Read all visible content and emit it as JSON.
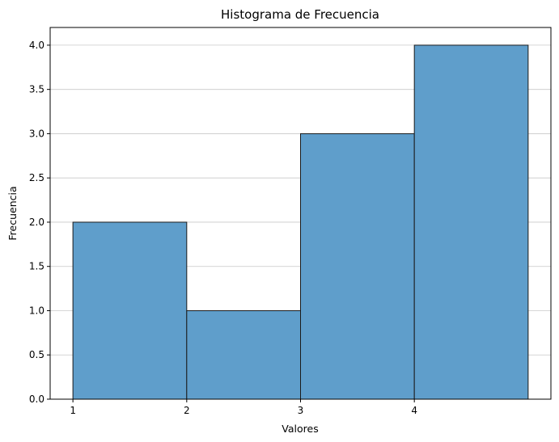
{
  "chart_data": {
    "type": "bar",
    "title": "Histograma de Frecuencia",
    "xlabel": "Valores",
    "ylabel": "Frecuencia",
    "bins": [
      {
        "start": 1,
        "end": 2,
        "value": 2
      },
      {
        "start": 2,
        "end": 3,
        "value": 1
      },
      {
        "start": 3,
        "end": 4,
        "value": 3
      },
      {
        "start": 4,
        "end": 5,
        "value": 4
      }
    ],
    "xlim": [
      0.8,
      5.2
    ],
    "ylim": [
      0,
      4.2
    ],
    "xticks": [
      {
        "value": 1,
        "label": "1"
      },
      {
        "value": 2,
        "label": "2"
      },
      {
        "value": 3,
        "label": "3"
      },
      {
        "value": 4,
        "label": "4"
      }
    ],
    "yticks": [
      {
        "value": 0,
        "label": "0.0"
      },
      {
        "value": 0.5,
        "label": "0.5"
      },
      {
        "value": 1,
        "label": "1.0"
      },
      {
        "value": 1.5,
        "label": "1.5"
      },
      {
        "value": 2,
        "label": "2.0"
      },
      {
        "value": 2.5,
        "label": "2.5"
      },
      {
        "value": 3,
        "label": "3.0"
      },
      {
        "value": 3.5,
        "label": "3.5"
      },
      {
        "value": 4,
        "label": "4.0"
      }
    ],
    "grid": "y",
    "bar_color": "#5f9ecb",
    "edge_color": "#1a1a1a"
  }
}
